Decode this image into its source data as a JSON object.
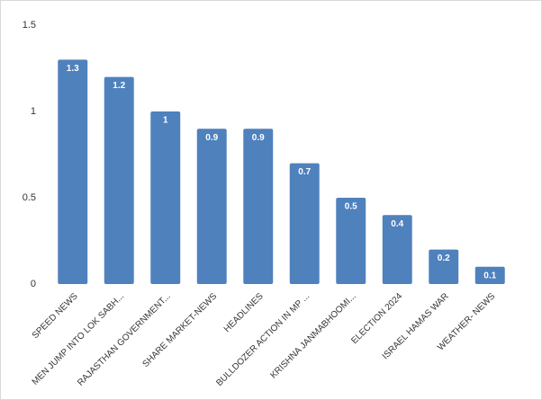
{
  "chart_data": {
    "type": "bar",
    "categories": [
      "SPEED NEWS",
      "MEN JUMP INTO LOK SABH...",
      "RAJASTHAN GOVERNMENT...",
      "SHARE MARKET-NEWS",
      "HEADLINES",
      "BULLDOZER ACTION IN MP ...",
      "KRISHNA JANMABHOOMI...",
      "ELECTION 2024",
      "ISRAEL HAMAS WAR",
      "WEATHER- NEWS"
    ],
    "values": [
      1.3,
      1.2,
      1,
      0.9,
      0.9,
      0.7,
      0.5,
      0.4,
      0.2,
      0.1
    ],
    "color": "#4f81bd",
    "ylim": [
      0,
      1.5
    ],
    "yticks": [
      0,
      0.5,
      1,
      1.5
    ],
    "grid": false
  }
}
